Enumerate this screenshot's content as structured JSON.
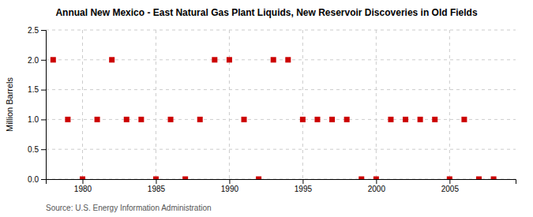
{
  "chart_data": {
    "type": "scatter",
    "title": "Annual New Mexico - East Natural Gas Plant Liquids,  New Reservoir Discoveries in Old Fields",
    "ylabel": "Million Barrels",
    "source": "Source: U.S. Energy Information Administration",
    "x": [
      1978,
      1979,
      1980,
      1981,
      1982,
      1983,
      1984,
      1985,
      1986,
      1987,
      1988,
      1989,
      1990,
      1991,
      1992,
      1993,
      1994,
      1995,
      1996,
      1997,
      1998,
      1999,
      2000,
      2001,
      2002,
      2003,
      2004,
      2005,
      2006,
      2007,
      2008
    ],
    "values": [
      2.0,
      1.0,
      0.0,
      1.0,
      2.0,
      1.0,
      1.0,
      0.0,
      1.0,
      0.0,
      1.0,
      2.0,
      2.0,
      1.0,
      0.0,
      2.0,
      2.0,
      1.0,
      1.0,
      1.0,
      1.0,
      0.0,
      0.0,
      1.0,
      1.0,
      1.0,
      1.0,
      0.0,
      1.0,
      0.0,
      0.0
    ],
    "color": "#cc0000",
    "marker": "square",
    "xlim": [
      1977.5,
      2009.5
    ],
    "xticks": [
      1980,
      1985,
      1990,
      1995,
      2000,
      2005
    ],
    "ylim": [
      0.0,
      2.5
    ],
    "yticks": [
      {
        "value": 0.0,
        "label": "0.0"
      },
      0.5,
      {
        "value": 1.0,
        "label": "1.0"
      },
      1.5,
      {
        "value": 2.0,
        "label": "2.0"
      },
      2.5
    ],
    "grid": true
  }
}
